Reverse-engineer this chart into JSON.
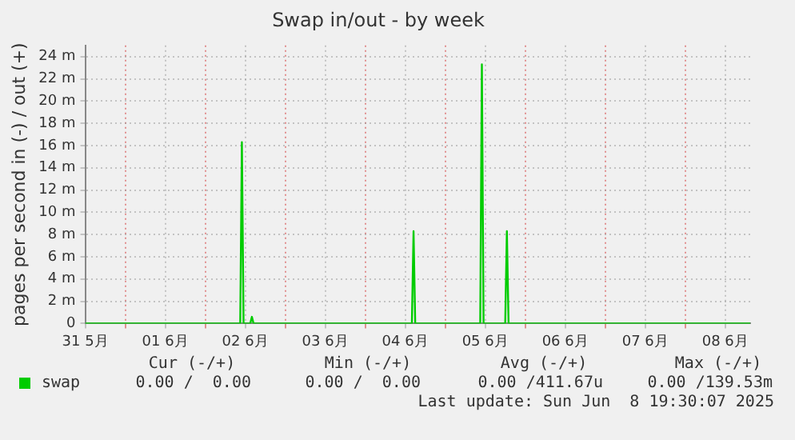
{
  "chart_data": {
    "type": "line",
    "title": "Swap in/out - by week",
    "ylabel": "pages per second in (-) / out (+)",
    "x": [
      "2025-05-31T12:00",
      "2025-06-02T10:30",
      "2025-06-02T11:00",
      "2025-06-02T11:30",
      "2025-06-02T13:30",
      "2025-06-02T14:00",
      "2025-06-02T14:30",
      "2025-06-04T14:00",
      "2025-06-04T14:30",
      "2025-06-04T15:00",
      "2025-06-05T10:30",
      "2025-06-05T11:00",
      "2025-06-05T11:30",
      "2025-06-05T18:00",
      "2025-06-05T18:30",
      "2025-06-05T19:00",
      "2025-06-08T19:30"
    ],
    "series": [
      {
        "name": "swap",
        "color": "#00cc00",
        "values": [
          0,
          0,
          16.3,
          0,
          0,
          0.6,
          0,
          0,
          8.3,
          0,
          0,
          23.3,
          0,
          0,
          8.3,
          0,
          0
        ]
      }
    ],
    "xlim": [
      "2025-05-31T12:00",
      "2025-06-08T19:30"
    ],
    "xticks": [
      {
        "value": "2025-05-31T12:00",
        "label": "31 5月"
      },
      {
        "value": "2025-06-01T00:00",
        "label": null
      },
      {
        "value": "2025-06-01T12:00",
        "label": "01 6月"
      },
      {
        "value": "2025-06-02T00:00",
        "label": null
      },
      {
        "value": "2025-06-02T12:00",
        "label": "02 6月"
      },
      {
        "value": "2025-06-03T00:00",
        "label": null
      },
      {
        "value": "2025-06-03T12:00",
        "label": "03 6月"
      },
      {
        "value": "2025-06-04T00:00",
        "label": null
      },
      {
        "value": "2025-06-04T12:00",
        "label": "04 6月"
      },
      {
        "value": "2025-06-05T00:00",
        "label": null
      },
      {
        "value": "2025-06-05T12:00",
        "label": "05 6月"
      },
      {
        "value": "2025-06-06T00:00",
        "label": null
      },
      {
        "value": "2025-06-06T12:00",
        "label": "06 6月"
      },
      {
        "value": "2025-06-07T00:00",
        "label": null
      },
      {
        "value": "2025-06-07T12:00",
        "label": "07 6月"
      },
      {
        "value": "2025-06-08T00:00",
        "label": null
      },
      {
        "value": "2025-06-08T12:00",
        "label": "08 6月"
      }
    ],
    "ylim": [
      0,
      25
    ],
    "yticks": [
      0,
      {
        "value": 2,
        "label": "2 m"
      },
      {
        "value": 4,
        "label": "4 m"
      },
      {
        "value": 6,
        "label": "6 m"
      },
      {
        "value": 8,
        "label": "8 m"
      },
      {
        "value": 10,
        "label": "10 m"
      },
      {
        "value": 12,
        "label": "12 m"
      },
      {
        "value": 14,
        "label": "14 m"
      },
      {
        "value": 16,
        "label": "16 m"
      },
      {
        "value": 18,
        "label": "18 m"
      },
      {
        "value": 20,
        "label": "20 m"
      },
      {
        "value": 22,
        "label": "22 m"
      },
      {
        "value": 24,
        "label": "24 m"
      }
    ],
    "grid": true,
    "legend": "bottom",
    "marker": "none",
    "line_style": "solid",
    "annotations": [
      "Cur (-/+)",
      "Min (-/+)",
      "Avg (-/+)",
      "Max (-/+)",
      "0.00 /  0.00",
      "0.00 /  0.00",
      "0.00 /411.67u",
      "0.00 /139.53m",
      "Last update: Sun Jun  8 19:30:07 2025"
    ]
  }
}
